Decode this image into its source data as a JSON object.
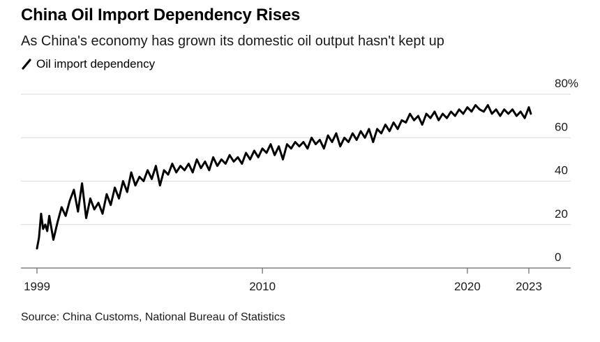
{
  "chart_data": {
    "type": "line",
    "title": "China Oil Import Dependency Rises",
    "subtitle": "As China's economy has grown its domestic oil output hasn't kept up",
    "source": "Source: China Customs, National Bureau of Statistics",
    "line_color": "#000000",
    "grid": true,
    "legend_position": "top-left",
    "series": [
      {
        "name": "Oil import dependency",
        "x": [
          1999.0,
          1999.1,
          1999.2,
          1999.3,
          1999.4,
          1999.5,
          1999.6,
          1999.8,
          2000.0,
          2000.2,
          2000.4,
          2000.6,
          2000.8,
          2001.0,
          2001.2,
          2001.4,
          2001.6,
          2001.8,
          2002.0,
          2002.2,
          2002.4,
          2002.6,
          2002.8,
          2003.0,
          2003.2,
          2003.4,
          2003.6,
          2003.8,
          2004.0,
          2004.2,
          2004.4,
          2004.6,
          2004.8,
          2005.0,
          2005.2,
          2005.4,
          2005.6,
          2005.8,
          2006.0,
          2006.2,
          2006.4,
          2006.6,
          2006.8,
          2007.0,
          2007.2,
          2007.4,
          2007.6,
          2007.8,
          2008.0,
          2008.2,
          2008.4,
          2008.6,
          2008.8,
          2009.0,
          2009.2,
          2009.4,
          2009.6,
          2009.8,
          2010.0,
          2010.2,
          2010.4,
          2010.6,
          2010.8,
          2011.0,
          2011.2,
          2011.4,
          2011.6,
          2011.8,
          2012.0,
          2012.2,
          2012.4,
          2012.6,
          2012.8,
          2013.0,
          2013.2,
          2013.4,
          2013.6,
          2013.8,
          2014.0,
          2014.2,
          2014.4,
          2014.6,
          2014.8,
          2015.0,
          2015.2,
          2015.4,
          2015.6,
          2015.8,
          2016.0,
          2016.2,
          2016.4,
          2016.6,
          2016.8,
          2017.0,
          2017.2,
          2017.4,
          2017.6,
          2017.8,
          2018.0,
          2018.2,
          2018.4,
          2018.6,
          2018.8,
          2019.0,
          2019.2,
          2019.4,
          2019.6,
          2019.8,
          2020.0,
          2020.2,
          2020.4,
          2020.6,
          2020.8,
          2021.0,
          2021.2,
          2021.4,
          2021.6,
          2021.8,
          2022.0,
          2022.2,
          2022.4,
          2022.6,
          2022.8,
          2023.0,
          2023.1
        ],
        "values": [
          9,
          14,
          25,
          18,
          20,
          17,
          24,
          13,
          21,
          28,
          24,
          31,
          36,
          26,
          39,
          23,
          32,
          27,
          30,
          25,
          34,
          29,
          37,
          32,
          40,
          35,
          44,
          38,
          42,
          40,
          45,
          41,
          47,
          38,
          45,
          43,
          48,
          44,
          47,
          45,
          48,
          44,
          50,
          46,
          49,
          45,
          51,
          47,
          50,
          48,
          52,
          49,
          51,
          48,
          53,
          50,
          54,
          51,
          55,
          53,
          57,
          52,
          56,
          50,
          57,
          55,
          58,
          56,
          58,
          55,
          60,
          57,
          59,
          55,
          61,
          58,
          62,
          56,
          60,
          58,
          62,
          59,
          63,
          60,
          64,
          58,
          64,
          62,
          66,
          63,
          67,
          64,
          68,
          67,
          71,
          68,
          70,
          66,
          71,
          69,
          72,
          68,
          71,
          69,
          72,
          70,
          73,
          71,
          74,
          72,
          75,
          73,
          72,
          75,
          71,
          73,
          70,
          73,
          71,
          73,
          70,
          72,
          69,
          74,
          71
        ]
      }
    ],
    "x_ticks": [
      {
        "value": 1999,
        "label": "1999"
      },
      {
        "value": 2010,
        "label": "2010"
      },
      {
        "value": 2020,
        "label": "2020"
      },
      {
        "value": 2023,
        "label": "2023"
      }
    ],
    "y_ticks": [
      {
        "value": 0,
        "label": "0"
      },
      {
        "value": 20,
        "label": "20"
      },
      {
        "value": 40,
        "label": "40"
      },
      {
        "value": 60,
        "label": "60"
      },
      {
        "value": 80,
        "label": "80%"
      }
    ],
    "xlim": [
      1999,
      2023
    ],
    "ylim": [
      0,
      80
    ]
  }
}
